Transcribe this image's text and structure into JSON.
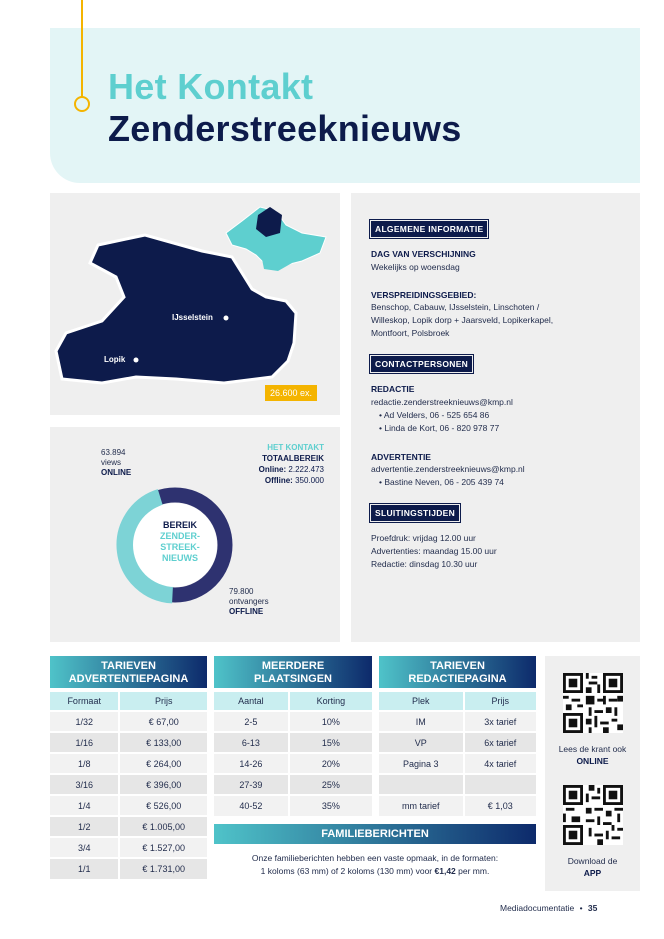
{
  "header": {
    "title_line1": "Het Kontakt",
    "title_line2": "Zenderstreeknieuws"
  },
  "map": {
    "places": [
      "IJsselstein",
      "Lopik"
    ],
    "circulation": "26.600 ex."
  },
  "reach": {
    "online_count": "63.894",
    "online_unit": "views",
    "online_label": "ONLINE",
    "brand": "HET KONTAKT",
    "total_label": "TOTAALBEREIK",
    "online_total_label": "Online:",
    "online_total": "2.222.473",
    "offline_total_label": "Offline:",
    "offline_total": "350.000",
    "offline_count": "79.800",
    "offline_unit": "ontvangers",
    "offline_label": "OFFLINE",
    "donut_line1": "BEREIK",
    "donut_line2": "ZENDER-",
    "donut_line3": "STREEK-",
    "donut_line4": "NIEUWS",
    "online_share": 0.4445
  },
  "info": {
    "general_tag": "ALGEMENE INFORMATIE",
    "day_heading": "DAG VAN VERSCHIJNING",
    "day_text": "Wekelijks op woensdag",
    "area_heading": "VERSPREIDINGSGEBIED:",
    "area_line1": "Benschop, Cabauw, IJsselstein, Linschoten /",
    "area_line2": "Willeskop, Lopik dorp + Jaarsveld, Lopikerkapel,",
    "area_line3": "Montfoort, Polsbroek",
    "contacts_tag": "CONTACTPERSONEN",
    "editorial_heading": "REDACTIE",
    "editorial_email": "redactie.zenderstreeknieuws@kmp.nl",
    "editorial_p1": "• Ad Velders, 06 - 525 654 86",
    "editorial_p2": "• Linda de Kort, 06 - 820 978 77",
    "ads_heading": "ADVERTENTIE",
    "ads_email": "advertentie.zenderstreeknieuws@kmp.nl",
    "ads_p1": "• Bastine Neven, 06 - 205 439 74",
    "deadline_tag": "SLUITINGSTIJDEN",
    "deadline1": "Proefdruk: vrijdag 12.00 uur",
    "deadline2": "Advertenties: maandag 15.00 uur",
    "deadline3": "Redactie: dinsdag 10.30 uur"
  },
  "tables": {
    "ad": {
      "title_line1": "TARIEVEN",
      "title_line2": "ADVERTENTIEPAGINA",
      "col1": "Formaat",
      "col2": "Prijs",
      "rows": [
        [
          "1/32",
          "€ 67,00"
        ],
        [
          "1/16",
          "€ 133,00"
        ],
        [
          "1/8",
          "€ 264,00"
        ],
        [
          "3/16",
          "€ 396,00"
        ],
        [
          "1/4",
          "€ 526,00"
        ],
        [
          "1/2",
          "€ 1.005,00"
        ],
        [
          "3/4",
          "€ 1.527,00"
        ],
        [
          "1/1",
          "€ 1.731,00"
        ]
      ]
    },
    "multi": {
      "title_line1": "MEERDERE",
      "title_line2": "PLAATSINGEN",
      "col1": "Aantal",
      "col2": "Korting",
      "rows": [
        [
          "2-5",
          "10%"
        ],
        [
          "6-13",
          "15%"
        ],
        [
          "14-26",
          "20%"
        ],
        [
          "27-39",
          "25%"
        ],
        [
          "40-52",
          "35%"
        ]
      ]
    },
    "editorial": {
      "title_line1": "TARIEVEN",
      "title_line2": "REDACTIEPAGINA",
      "col1": "Plek",
      "col2": "Prijs",
      "rows": [
        [
          "IM",
          "3x tarief"
        ],
        [
          "VP",
          "6x tarief"
        ],
        [
          "Pagina 3",
          "4x tarief"
        ],
        [
          "",
          ""
        ],
        [
          "mm tarief",
          "€ 1,03"
        ]
      ]
    }
  },
  "family": {
    "title": "FAMILIEBERICHTEN",
    "line1": "Onze familieberichten hebben een vaste opmaak, in de formaten:",
    "line2_a": "1 koloms (63 mm) of 2 koloms (130 mm) voor ",
    "line2_price": "€1,42",
    "line2_b": " per mm."
  },
  "qr": {
    "online_cap1": "Lees de krant ook",
    "online_cap2": "ONLINE",
    "app_cap1": "Download de",
    "app_cap2": "APP"
  },
  "footer": {
    "label": "Mediadocumentatie",
    "sep": "•",
    "page": "35"
  },
  "colors": {
    "navy": "#0d1b4b",
    "teal": "#5ecfcf",
    "yellow": "#f4b400",
    "panel": "#efefef"
  }
}
